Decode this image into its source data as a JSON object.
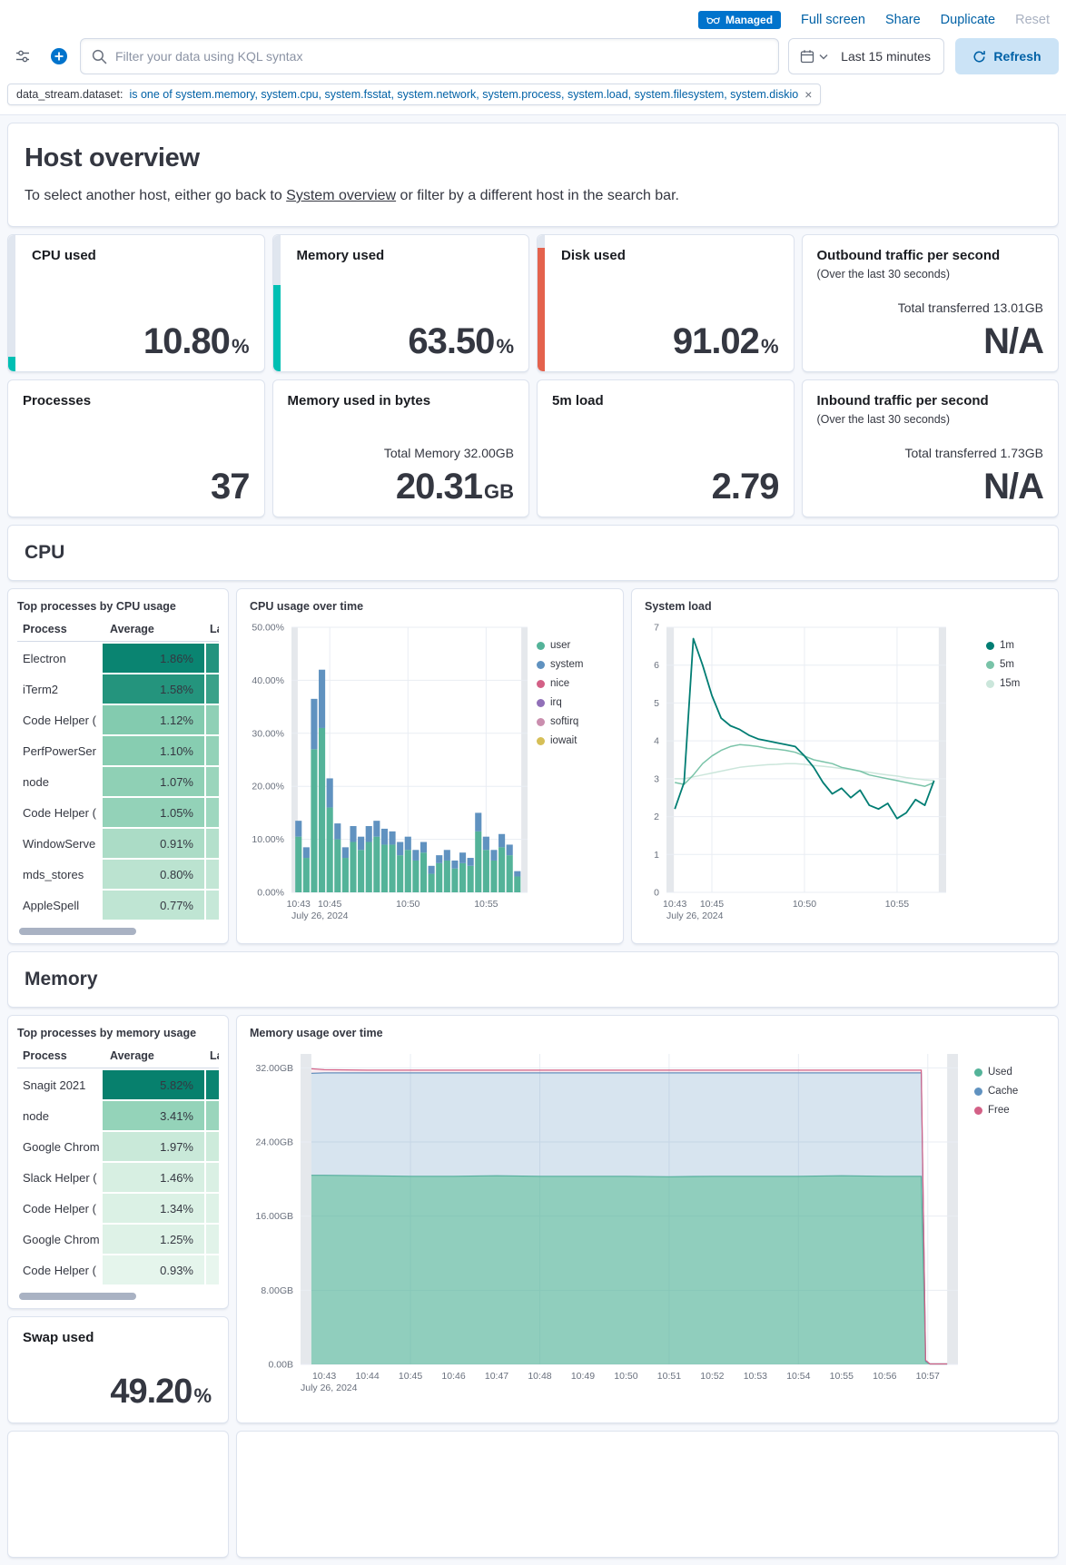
{
  "icons": {
    "close": "×"
  },
  "top_bar": {
    "managed_label": "Managed",
    "full_screen": "Full screen",
    "share": "Share",
    "duplicate": "Duplicate",
    "reset": "Reset"
  },
  "toolbar": {
    "search_placeholder": "Filter your data using KQL syntax",
    "time_range": "Last 15 minutes",
    "refresh_label": "Refresh"
  },
  "filter_pill": {
    "field": "data_stream.dataset:",
    "value": "is one of system.memory, system.cpu, system.fsstat, system.network, system.process, system.load, system.filesystem, system.diskio"
  },
  "host_overview": {
    "title": "Host overview",
    "desc_prefix": "To select another host, either go back to ",
    "link": "System overview",
    "desc_suffix": " or filter by a different host in the search bar."
  },
  "metrics": {
    "cpu": {
      "title": "CPU used",
      "value": "10.80",
      "unit": "%",
      "bar": {
        "pct": 10.8,
        "color": "#00BFB3"
      }
    },
    "memory": {
      "title": "Memory used",
      "value": "63.50",
      "unit": "%",
      "bar": {
        "pct": 63.5,
        "color": "#00BFB3"
      }
    },
    "disk": {
      "title": "Disk used",
      "value": "91.02",
      "unit": "%",
      "bar": {
        "pct": 91,
        "color": "#E4624D"
      }
    },
    "outbound": {
      "title": "Outbound traffic per second",
      "subtitle": "(Over the last 30 seconds)",
      "total": "Total transferred 13.01GB",
      "value": "N/A"
    },
    "processes": {
      "title": "Processes",
      "value": "37"
    },
    "memory_bytes": {
      "title": "Memory used in bytes",
      "total": "Total Memory 32.00GB",
      "value": "20.31",
      "unit": "GB"
    },
    "load5m": {
      "title": "5m load",
      "value": "2.79"
    },
    "inbound": {
      "title": "Inbound traffic per second",
      "subtitle": "(Over the last 30 seconds)",
      "total": "Total transferred 1.73GB",
      "value": "N/A"
    }
  },
  "sections": {
    "cpu": "CPU",
    "memory": "Memory"
  },
  "tables": {
    "cpu": {
      "title": "Top processes by CPU usage",
      "columns": [
        "Process",
        "Average",
        "Last"
      ],
      "rows": [
        {
          "process": "Electron",
          "average": "1.86%",
          "avg_color": "#0A8471",
          "last_color": "#23937E"
        },
        {
          "process": "iTerm2",
          "average": "1.58%",
          "avg_color": "#24947D",
          "last_color": "#3AA189"
        },
        {
          "process": "Code Helper (",
          "average": "1.12%",
          "avg_color": "#83CBAF",
          "last_color": "#8FD0B6"
        },
        {
          "process": "PerfPowerSer",
          "average": "1.10%",
          "avg_color": "#87CDB1",
          "last_color": "#93D2B8"
        },
        {
          "process": "node",
          "average": "1.07%",
          "avg_color": "#8FD0B5",
          "last_color": "#9AD5BC"
        },
        {
          "process": "Code Helper (",
          "average": "1.05%",
          "avg_color": "#93D2B8",
          "last_color": "#9ED7BF"
        },
        {
          "process": "WindowServe",
          "average": "0.91%",
          "avg_color": "#ABDCC6",
          "last_color": "#B4E0CC"
        },
        {
          "process": "mds_stores",
          "average": "0.80%",
          "avg_color": "#BBE3D0",
          "last_color": "#C2E6D5"
        },
        {
          "process": "AppleSpell",
          "average": "0.77%",
          "avg_color": "#BFE5D3",
          "last_color": "#C6E8D8"
        }
      ]
    },
    "memory": {
      "title": "Top processes by memory usage",
      "columns": [
        "Process",
        "Average",
        "Last"
      ],
      "rows": [
        {
          "process": "Snagit 2021",
          "average": "5.82%",
          "avg_color": "#07806D",
          "last_color": "#0A8471"
        },
        {
          "process": "node",
          "average": "3.41%",
          "avg_color": "#94D3B9",
          "last_color": "#9AD5BC"
        },
        {
          "process": "Google Chrom",
          "average": "1.97%",
          "avg_color": "#C9E9D9",
          "last_color": "#CDEBDB"
        },
        {
          "process": "Slack Helper (",
          "average": "1.46%",
          "avg_color": "#D7EFE2",
          "last_color": "#DAF0E4"
        },
        {
          "process": "Code Helper (",
          "average": "1.34%",
          "avg_color": "#DBF1E5",
          "last_color": "#DEF2E7"
        },
        {
          "process": "Google Chrom",
          "average": "1.25%",
          "avg_color": "#DEF2E7",
          "last_color": "#E1F3E9"
        },
        {
          "process": "Code Helper (",
          "average": "0.93%",
          "avg_color": "#E5F5EC",
          "last_color": "#E8F6EE"
        }
      ]
    }
  },
  "swap": {
    "title": "Swap used",
    "value": "49.20",
    "unit": "%"
  },
  "chart_data": [
    {
      "id": "cpu-usage",
      "type": "bar",
      "title": "CPU usage over time",
      "x_domain": [
        42.55,
        57.65
      ],
      "x_start": 43.0,
      "x_step": 0.5,
      "ylim": [
        0,
        50
      ],
      "yticks": [
        {
          "v": 0,
          "label": "0.00%"
        },
        {
          "v": 10,
          "label": "10.00%"
        },
        {
          "v": 20,
          "label": "20.00%"
        },
        {
          "v": 30,
          "label": "30.00%"
        },
        {
          "v": 40,
          "label": "40.00%"
        },
        {
          "v": 50,
          "label": "50.00%"
        }
      ],
      "xticks": [
        {
          "v": 43,
          "label": "10:43",
          "grid": false
        },
        {
          "v": 45,
          "label": "10:45",
          "grid": true
        },
        {
          "v": 50,
          "label": "10:50",
          "grid": true
        },
        {
          "v": 55,
          "label": "10:55",
          "grid": true
        }
      ],
      "bands": [
        [
          42.55,
          42.95
        ],
        [
          57.25,
          57.65
        ]
      ],
      "date_label": "July 26, 2024",
      "series": [
        {
          "name": "user",
          "color": "#54B399",
          "values": [
            10.5,
            6.5,
            27,
            31,
            16,
            10,
            6.5,
            9.5,
            8,
            9.5,
            10.5,
            9,
            9,
            7,
            8,
            6,
            7.5,
            3.5,
            5.5,
            6,
            4.5,
            5.5,
            5,
            11.5,
            8,
            6,
            8.5,
            7,
            3
          ]
        },
        {
          "name": "system",
          "color": "#6092C0",
          "values": [
            3,
            2,
            9.5,
            11,
            5.5,
            3,
            2,
            3,
            2.5,
            3,
            3,
            3,
            2.5,
            2.5,
            2.5,
            2,
            2,
            1.5,
            1.5,
            2,
            1.5,
            2,
            1.5,
            3.5,
            2.5,
            2,
            2.5,
            2,
            1
          ]
        },
        {
          "name": "nice",
          "color": "#D36086",
          "values": []
        },
        {
          "name": "irq",
          "color": "#9170B8",
          "values": []
        },
        {
          "name": "softirq",
          "color": "#CA8EAE",
          "values": []
        },
        {
          "name": "iowait",
          "color": "#D6BF57",
          "values": []
        }
      ]
    },
    {
      "id": "system-load",
      "type": "line",
      "title": "System load",
      "x_domain": [
        42.55,
        57.65
      ],
      "x_start": 43.0,
      "x_step": 0.5,
      "ylim": [
        0,
        7
      ],
      "yticks": [
        {
          "v": 0,
          "label": "0"
        },
        {
          "v": 1,
          "label": "1"
        },
        {
          "v": 2,
          "label": "2"
        },
        {
          "v": 3,
          "label": "3"
        },
        {
          "v": 4,
          "label": "4"
        },
        {
          "v": 5,
          "label": "5"
        },
        {
          "v": 6,
          "label": "6"
        },
        {
          "v": 7,
          "label": "7"
        }
      ],
      "xticks": [
        {
          "v": 43,
          "label": "10:43",
          "grid": false
        },
        {
          "v": 45,
          "label": "10:45",
          "grid": true
        },
        {
          "v": 50,
          "label": "10:50",
          "grid": true
        },
        {
          "v": 55,
          "label": "10:55",
          "grid": true
        }
      ],
      "bands": [
        [
          42.55,
          42.95
        ],
        [
          57.25,
          57.65
        ]
      ],
      "date_label": "July 26, 2024",
      "series": [
        {
          "name": "1m",
          "color": "#017D73",
          "width": 1.8,
          "values": [
            2.2,
            2.9,
            6.7,
            6.0,
            5.2,
            4.6,
            4.4,
            4.3,
            4.15,
            4.05,
            4.0,
            3.95,
            3.9,
            3.85,
            3.6,
            3.3,
            2.9,
            2.6,
            2.75,
            2.5,
            2.7,
            2.3,
            2.2,
            2.35,
            1.95,
            2.1,
            2.45,
            2.3,
            2.95
          ]
        },
        {
          "name": "5m",
          "color": "#79C3A8",
          "width": 1.5,
          "values": [
            2.9,
            2.85,
            3.1,
            3.4,
            3.6,
            3.75,
            3.85,
            3.9,
            3.88,
            3.85,
            3.8,
            3.78,
            3.75,
            3.7,
            3.6,
            3.5,
            3.45,
            3.4,
            3.3,
            3.25,
            3.2,
            3.1,
            3.05,
            3.0,
            2.95,
            2.9,
            2.85,
            2.8,
            2.9
          ]
        },
        {
          "name": "15m",
          "color": "#CBE6DB",
          "width": 1.5,
          "values": [
            3.0,
            3.0,
            3.05,
            3.1,
            3.15,
            3.2,
            3.25,
            3.3,
            3.33,
            3.35,
            3.37,
            3.38,
            3.4,
            3.4,
            3.38,
            3.35,
            3.33,
            3.3,
            3.27,
            3.24,
            3.2,
            3.17,
            3.13,
            3.1,
            3.07,
            3.03,
            3.0,
            2.97,
            2.95
          ]
        }
      ]
    },
    {
      "id": "memory-usage",
      "type": "area",
      "title": "Memory usage over time",
      "x_domain": [
        42.45,
        57.7
      ],
      "x": [
        42.7,
        43,
        44,
        45,
        46,
        47,
        48,
        49,
        50,
        51,
        52,
        53,
        54,
        55,
        56,
        56.6,
        56.85,
        56.95,
        57.05,
        57.45
      ],
      "ylim": [
        0,
        33.5
      ],
      "yticks": [
        {
          "v": 0,
          "label": "0.00B"
        },
        {
          "v": 8,
          "label": "8.00GB"
        },
        {
          "v": 16,
          "label": "16.00GB"
        },
        {
          "v": 24,
          "label": "24.00GB"
        },
        {
          "v": 32,
          "label": "32.00GB"
        }
      ],
      "xticks": [
        {
          "v": 43,
          "label": "10:43",
          "grid": false
        },
        {
          "v": 44,
          "label": "10:44",
          "grid": false
        },
        {
          "v": 45,
          "label": "10:45",
          "grid": true
        },
        {
          "v": 46,
          "label": "10:46",
          "grid": false
        },
        {
          "v": 47,
          "label": "10:47",
          "grid": false
        },
        {
          "v": 48,
          "label": "10:48",
          "grid": true
        },
        {
          "v": 49,
          "label": "10:49",
          "grid": false
        },
        {
          "v": 50,
          "label": "10:50",
          "grid": false
        },
        {
          "v": 51,
          "label": "10:51",
          "grid": true
        },
        {
          "v": 52,
          "label": "10:52",
          "grid": false
        },
        {
          "v": 53,
          "label": "10:53",
          "grid": false
        },
        {
          "v": 54,
          "label": "10:54",
          "grid": true
        },
        {
          "v": 55,
          "label": "10:55",
          "grid": false
        },
        {
          "v": 56,
          "label": "10:56",
          "grid": false
        },
        {
          "v": 57,
          "label": "10:57",
          "grid": true
        }
      ],
      "bands": [
        [
          42.45,
          42.7
        ],
        [
          57.45,
          57.7
        ]
      ],
      "date_label": "July 26, 2024",
      "series": [
        {
          "name": "Used",
          "color": "#54B399",
          "fill_opacity": 0.65,
          "values": [
            20.4,
            20.4,
            20.35,
            20.3,
            20.3,
            20.35,
            20.3,
            20.3,
            20.3,
            20.25,
            20.3,
            20.3,
            20.3,
            20.35,
            20.3,
            20.3,
            20.3,
            0.3,
            0.05,
            0.05
          ]
        },
        {
          "name": "Cache",
          "color": "#6092C0",
          "fill_opacity": 0.25,
          "values": [
            11.0,
            11.05,
            11.1,
            11.15,
            11.15,
            11.1,
            11.15,
            11.15,
            11.15,
            11.2,
            11.15,
            11.15,
            11.15,
            11.1,
            11.15,
            11.15,
            11.15,
            0.1,
            0,
            0
          ]
        },
        {
          "name": "Free",
          "color": "#D36086",
          "fill_opacity": 0.12,
          "values": [
            0.5,
            0.35,
            0.3,
            0.3,
            0.3,
            0.3,
            0.3,
            0.3,
            0.3,
            0.3,
            0.3,
            0.3,
            0.3,
            0.3,
            0.3,
            0.3,
            0.3,
            0.05,
            0,
            0
          ]
        }
      ]
    }
  ]
}
